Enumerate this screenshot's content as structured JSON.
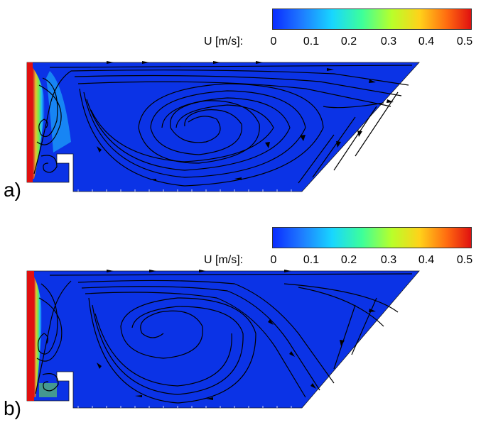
{
  "colorbar": {
    "label": "U [m/s]:",
    "ticks": [
      "0",
      "0.1",
      "0.2",
      "0.3",
      "0.4",
      "0.5"
    ],
    "colors": [
      "#0a2cff",
      "#1e78ff",
      "#18d6ff",
      "#3dff9a",
      "#b8ff2a",
      "#ffd21a",
      "#ff6a10",
      "#e01010"
    ]
  },
  "panels": [
    {
      "label": "a)",
      "vortex_center": "x≈260, y≈170 (main recirculation)"
    },
    {
      "label": "b)",
      "vortex_center": "x≈215, y≈440 (main recirculation)"
    }
  ],
  "colors": {
    "field_background": "#0b33e6",
    "streamline": "#000000",
    "wall_hot": "#e01010",
    "jet_green": "#7dff3a",
    "jet_cyan": "#22c8ff"
  }
}
